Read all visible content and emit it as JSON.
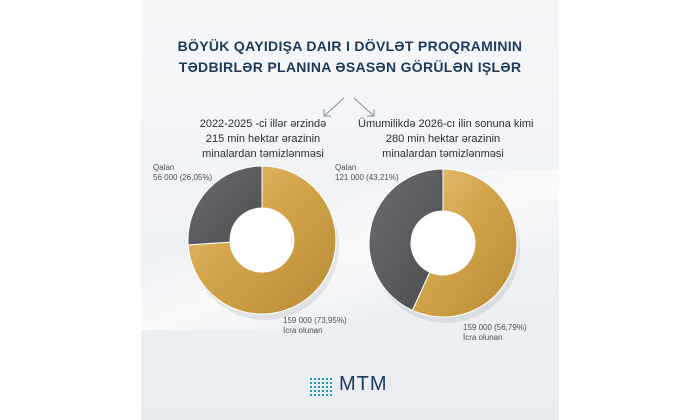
{
  "title_lines": [
    "BÖYÜK QAYIDIŞA DAIR I DÖVLƏT PROQRAMININ",
    "TƏDBIRLƏR PLANINA ƏSASƏN GÖRÜLƏN IŞLƏR"
  ],
  "logo_text": "MTM",
  "colors": {
    "title": "#1b3a5c",
    "done": "#d4a84a",
    "remaining": "#5b5d61"
  },
  "chart_data": [
    {
      "type": "pie",
      "title_lines": [
        "2022-2025 -ci illər ərzində",
        "215 min hektar ərazinin",
        "minalardan təmizlənməsi"
      ],
      "slices": [
        {
          "label": "İcra olunan",
          "value": 159000,
          "percent": 73.95,
          "value_text": "159 000 (73,95%)"
        },
        {
          "label": "Qalan",
          "value": 56000,
          "percent": 26.05,
          "value_text": "56 000 (26,05%)"
        }
      ]
    },
    {
      "type": "pie",
      "title_lines": [
        "Ümumilikdə 2026-cı ilin sonuna kimi",
        "280 min hektar ərazinin",
        "minalardan təmizlənməsi"
      ],
      "slices": [
        {
          "label": "İcra olunan",
          "value": 159000,
          "percent": 56.79,
          "value_text": "159 000 (56,79%)"
        },
        {
          "label": "Qalan",
          "value": 121000,
          "percent": 43.21,
          "value_text": "121 000 (43,21%)"
        }
      ]
    }
  ]
}
